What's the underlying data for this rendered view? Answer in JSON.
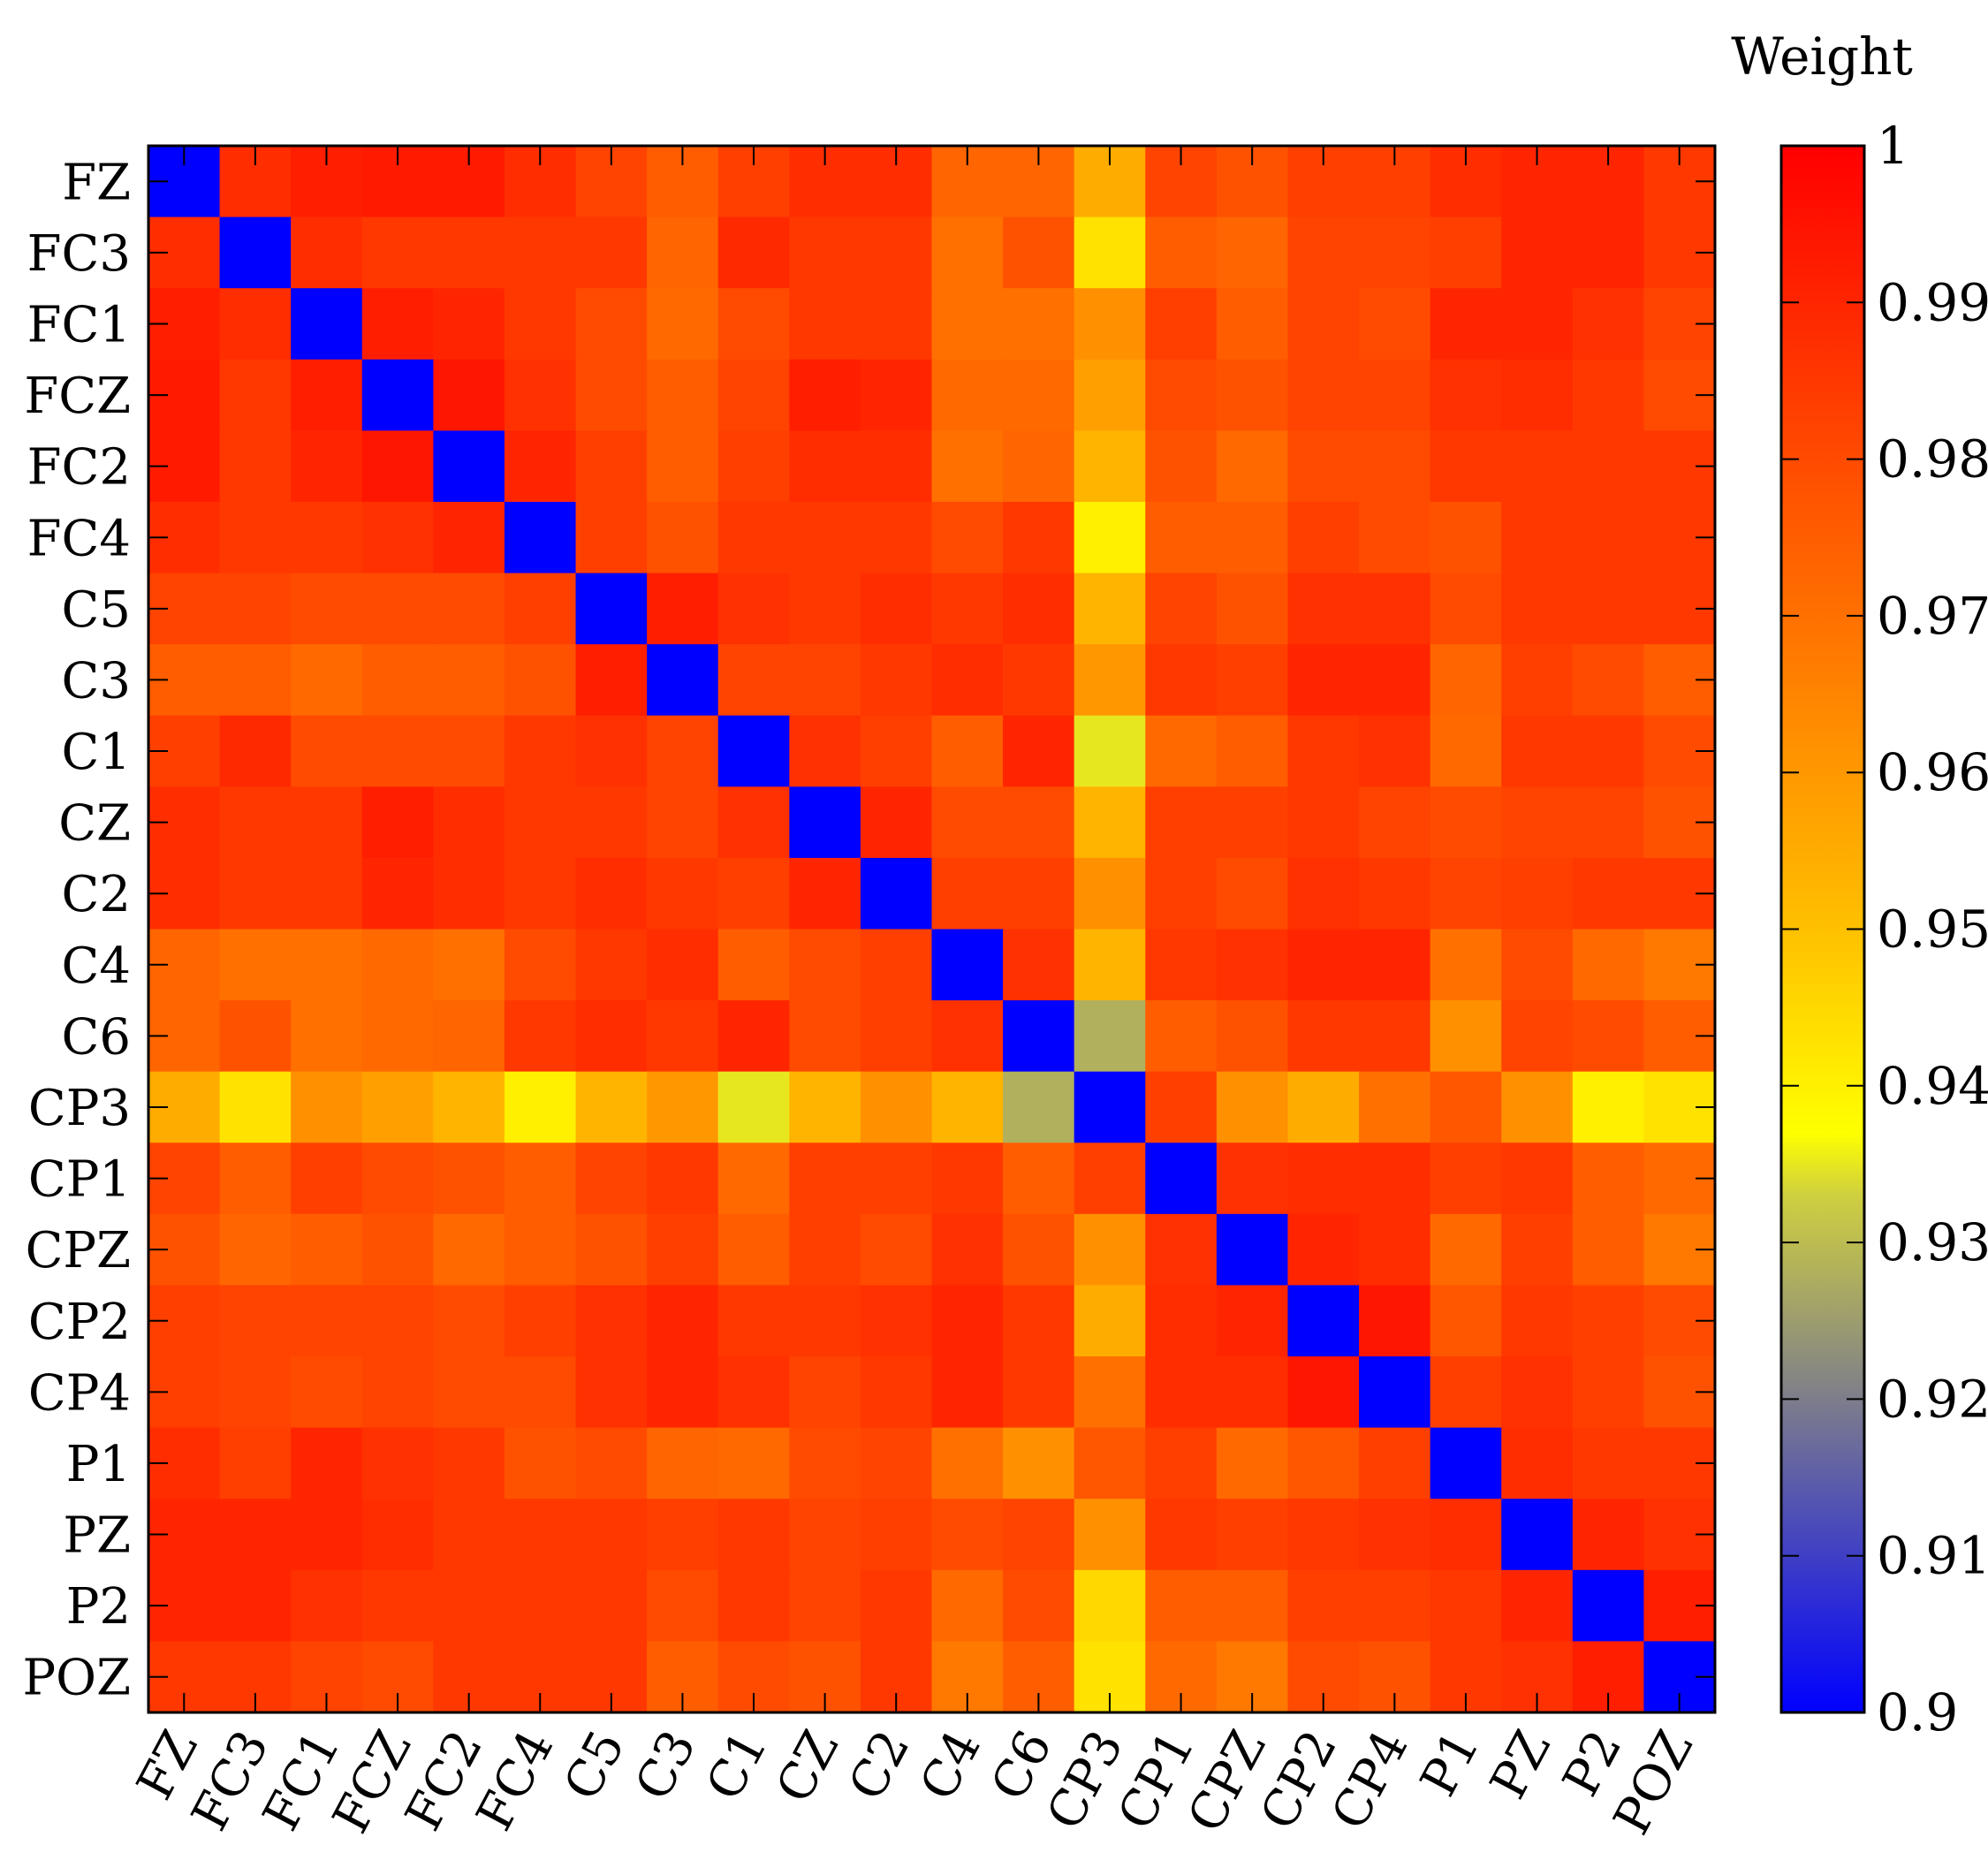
{
  "chart_data": {
    "type": "heatmap",
    "x_labels": [
      "FZ",
      "FC3",
      "FC1",
      "FCZ",
      "FC2",
      "FC4",
      "C5",
      "C3",
      "C1",
      "CZ",
      "C2",
      "C4",
      "C6",
      "CP3",
      "CP1",
      "CPZ",
      "CP2",
      "CP4",
      "P1",
      "PZ",
      "P2",
      "POZ"
    ],
    "y_labels": [
      "FZ",
      "FC3",
      "FC1",
      "FCZ",
      "FC2",
      "FC4",
      "C5",
      "C3",
      "C1",
      "CZ",
      "C2",
      "C4",
      "C6",
      "CP3",
      "CP1",
      "CPZ",
      "CP2",
      "CP4",
      "P1",
      "PZ",
      "P2",
      "POZ"
    ],
    "colorbar": {
      "title": "Weight",
      "min": 0.9,
      "max": 1,
      "ticks": [
        0.9,
        0.91,
        0.92,
        0.93,
        0.94,
        0.95,
        0.96,
        0.97,
        0.98,
        0.99,
        1
      ],
      "tick_labels": [
        "0.9",
        "0.91",
        "0.92",
        "0.93",
        "0.94",
        "0.95",
        "0.96",
        "0.97",
        "0.98",
        "0.99",
        "1"
      ],
      "colors": [
        "#0000ff",
        "#ffff00",
        "#ff0000"
      ]
    },
    "values": [
      [
        0.9,
        0.988,
        0.992,
        0.993,
        0.993,
        0.988,
        0.982,
        0.975,
        0.983,
        0.988,
        0.988,
        0.973,
        0.973,
        0.955,
        0.982,
        0.978,
        0.983,
        0.983,
        0.988,
        0.99,
        0.99,
        0.985
      ],
      [
        0.988,
        0.9,
        0.988,
        0.985,
        0.985,
        0.985,
        0.985,
        0.973,
        0.989,
        0.985,
        0.985,
        0.97,
        0.978,
        0.943,
        0.975,
        0.973,
        0.982,
        0.982,
        0.983,
        0.99,
        0.99,
        0.985
      ],
      [
        0.992,
        0.988,
        0.9,
        0.992,
        0.99,
        0.985,
        0.98,
        0.972,
        0.98,
        0.985,
        0.985,
        0.97,
        0.97,
        0.962,
        0.983,
        0.975,
        0.982,
        0.98,
        0.99,
        0.99,
        0.987,
        0.982
      ],
      [
        0.993,
        0.985,
        0.992,
        0.9,
        0.994,
        0.987,
        0.98,
        0.975,
        0.982,
        0.992,
        0.99,
        0.972,
        0.972,
        0.958,
        0.98,
        0.978,
        0.982,
        0.982,
        0.987,
        0.988,
        0.985,
        0.98
      ],
      [
        0.993,
        0.985,
        0.99,
        0.994,
        0.9,
        0.99,
        0.983,
        0.975,
        0.983,
        0.988,
        0.988,
        0.97,
        0.973,
        0.953,
        0.978,
        0.972,
        0.98,
        0.98,
        0.985,
        0.985,
        0.985,
        0.985
      ],
      [
        0.988,
        0.985,
        0.985,
        0.987,
        0.99,
        0.9,
        0.983,
        0.978,
        0.985,
        0.985,
        0.985,
        0.98,
        0.985,
        0.94,
        0.975,
        0.975,
        0.983,
        0.98,
        0.978,
        0.985,
        0.985,
        0.985
      ],
      [
        0.982,
        0.982,
        0.98,
        0.98,
        0.98,
        0.983,
        0.9,
        0.992,
        0.987,
        0.985,
        0.988,
        0.985,
        0.988,
        0.953,
        0.982,
        0.978,
        0.987,
        0.987,
        0.98,
        0.985,
        0.985,
        0.985
      ],
      [
        0.975,
        0.975,
        0.972,
        0.975,
        0.975,
        0.978,
        0.992,
        0.9,
        0.982,
        0.982,
        0.985,
        0.988,
        0.985,
        0.96,
        0.985,
        0.983,
        0.99,
        0.99,
        0.973,
        0.983,
        0.98,
        0.975
      ],
      [
        0.983,
        0.989,
        0.98,
        0.98,
        0.98,
        0.985,
        0.987,
        0.982,
        0.9,
        0.987,
        0.983,
        0.975,
        0.99,
        0.935,
        0.972,
        0.975,
        0.985,
        0.987,
        0.972,
        0.985,
        0.985,
        0.98
      ],
      [
        0.988,
        0.985,
        0.985,
        0.992,
        0.988,
        0.985,
        0.985,
        0.982,
        0.987,
        0.9,
        0.99,
        0.98,
        0.98,
        0.953,
        0.983,
        0.983,
        0.985,
        0.982,
        0.98,
        0.982,
        0.982,
        0.978
      ],
      [
        0.988,
        0.985,
        0.985,
        0.99,
        0.988,
        0.985,
        0.988,
        0.985,
        0.983,
        0.99,
        0.9,
        0.983,
        0.983,
        0.962,
        0.983,
        0.98,
        0.987,
        0.985,
        0.982,
        0.983,
        0.985,
        0.985
      ],
      [
        0.973,
        0.97,
        0.97,
        0.972,
        0.97,
        0.98,
        0.985,
        0.988,
        0.975,
        0.98,
        0.983,
        0.9,
        0.987,
        0.953,
        0.985,
        0.987,
        0.99,
        0.99,
        0.97,
        0.98,
        0.972,
        0.968
      ],
      [
        0.973,
        0.978,
        0.97,
        0.972,
        0.973,
        0.985,
        0.988,
        0.985,
        0.99,
        0.98,
        0.983,
        0.987,
        0.9,
        0.928,
        0.975,
        0.978,
        0.985,
        0.985,
        0.962,
        0.982,
        0.98,
        0.975
      ],
      [
        0.955,
        0.943,
        0.962,
        0.958,
        0.953,
        0.94,
        0.953,
        0.96,
        0.935,
        0.953,
        0.962,
        0.953,
        0.928,
        0.9,
        0.983,
        0.962,
        0.955,
        0.97,
        0.977,
        0.962,
        0.94,
        0.943
      ],
      [
        0.982,
        0.975,
        0.983,
        0.98,
        0.978,
        0.975,
        0.982,
        0.985,
        0.972,
        0.983,
        0.983,
        0.985,
        0.975,
        0.983,
        0.9,
        0.987,
        0.988,
        0.988,
        0.983,
        0.985,
        0.975,
        0.972
      ],
      [
        0.978,
        0.973,
        0.975,
        0.978,
        0.972,
        0.975,
        0.978,
        0.983,
        0.975,
        0.983,
        0.98,
        0.987,
        0.978,
        0.962,
        0.987,
        0.9,
        0.99,
        0.988,
        0.972,
        0.983,
        0.975,
        0.968
      ],
      [
        0.983,
        0.982,
        0.982,
        0.982,
        0.98,
        0.983,
        0.987,
        0.99,
        0.985,
        0.985,
        0.987,
        0.99,
        0.985,
        0.955,
        0.988,
        0.99,
        0.9,
        0.994,
        0.977,
        0.985,
        0.983,
        0.98
      ],
      [
        0.983,
        0.982,
        0.98,
        0.982,
        0.98,
        0.98,
        0.987,
        0.99,
        0.987,
        0.982,
        0.985,
        0.99,
        0.985,
        0.97,
        0.988,
        0.988,
        0.994,
        0.9,
        0.983,
        0.987,
        0.983,
        0.978
      ],
      [
        0.988,
        0.983,
        0.99,
        0.987,
        0.985,
        0.978,
        0.98,
        0.973,
        0.972,
        0.98,
        0.982,
        0.97,
        0.962,
        0.977,
        0.983,
        0.972,
        0.977,
        0.983,
        0.9,
        0.988,
        0.985,
        0.985
      ],
      [
        0.99,
        0.99,
        0.99,
        0.988,
        0.985,
        0.985,
        0.985,
        0.983,
        0.985,
        0.982,
        0.983,
        0.98,
        0.982,
        0.962,
        0.985,
        0.983,
        0.985,
        0.987,
        0.988,
        0.9,
        0.99,
        0.987
      ],
      [
        0.99,
        0.99,
        0.987,
        0.985,
        0.985,
        0.985,
        0.985,
        0.98,
        0.985,
        0.982,
        0.985,
        0.972,
        0.98,
        0.945,
        0.975,
        0.975,
        0.983,
        0.983,
        0.985,
        0.99,
        0.9,
        0.992
      ],
      [
        0.985,
        0.985,
        0.982,
        0.98,
        0.985,
        0.985,
        0.985,
        0.975,
        0.98,
        0.978,
        0.985,
        0.968,
        0.975,
        0.943,
        0.972,
        0.968,
        0.98,
        0.978,
        0.985,
        0.987,
        0.992,
        0.9
      ]
    ]
  }
}
